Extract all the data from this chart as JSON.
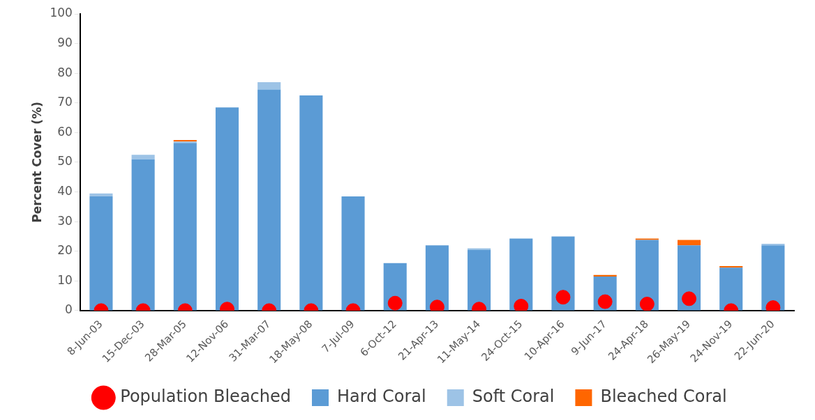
{
  "chart_data": {
    "type": "bar",
    "stacked": true,
    "ylabel": "Percent Cover (%)",
    "categories": [
      "8-Jun-03",
      "15-Dec-03",
      "28-Mar-05",
      "12-Nov-06",
      "31-Mar-07",
      "18-May-08",
      "7-Jul-09",
      "6-Oct-12",
      "21-Apr-13",
      "11-May-14",
      "24-Oct-15",
      "10-Apr-16",
      "9-Jun-17",
      "24-Apr-18",
      "26-May-19",
      "24-Nov-19",
      "22-Jun-20"
    ],
    "series": [
      {
        "name": "Hard Coral",
        "color": "#5b9bd5",
        "values": [
          38.5,
          51,
          56.5,
          68.5,
          74.5,
          72.5,
          38.5,
          16,
          22,
          20.5,
          24.3,
          25,
          11.5,
          23.8,
          22,
          14.5,
          22
        ]
      },
      {
        "name": "Soft Coral",
        "color": "#9dc3e6",
        "values": [
          1,
          1.5,
          0.5,
          0,
          2.5,
          0,
          0,
          0,
          0,
          0.5,
          0,
          0,
          0,
          0,
          0,
          0,
          0.5
        ]
      },
      {
        "name": "Bleached Coral",
        "color": "#ff6600",
        "values": [
          0,
          0,
          0.5,
          0,
          0,
          0,
          0,
          0,
          0,
          0,
          0,
          0,
          0.5,
          0.5,
          1.8,
          0.5,
          0
        ]
      },
      {
        "name": "Population Bleached",
        "type": "scatter",
        "color": "#ff0000",
        "x": [
          "8-Jun-03",
          "15-Dec-03",
          "28-Mar-05",
          "12-Nov-06",
          "31-Mar-07",
          "18-May-08",
          "7-Jul-09",
          "6-Oct-12",
          "21-Apr-13",
          "11-May-14",
          "24-Oct-15",
          "10-Apr-16",
          "9-Jun-17",
          "24-Apr-18",
          "26-May-19",
          "24-Nov-19",
          "22-Jun-20"
        ],
        "values": [
          0,
          0,
          0,
          0.5,
          0,
          0,
          0,
          2.5,
          1.2,
          0.5,
          1.5,
          4.5,
          3,
          2.2,
          4,
          0,
          1
        ]
      }
    ],
    "ylim": [
      0,
      100
    ],
    "yticks": [
      0,
      10,
      20,
      30,
      40,
      50,
      60,
      70,
      80,
      90,
      100
    ],
    "grid": false,
    "legend": "bottom",
    "marker": "circle"
  }
}
